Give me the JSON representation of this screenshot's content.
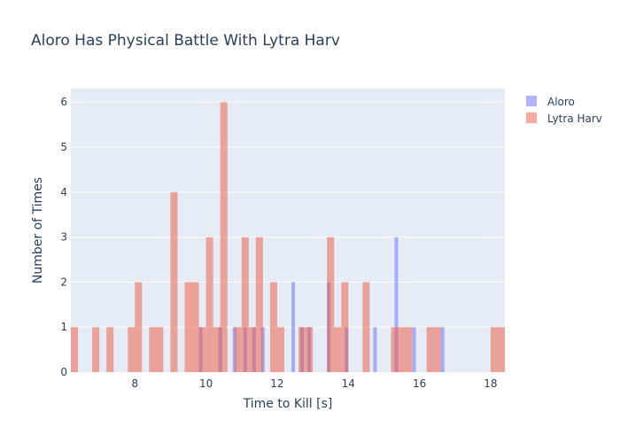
{
  "chart_data": {
    "type": "bar",
    "title": "Aloro Has Physical Battle With Lytra Harv",
    "xlabel": "Time to Kill [s]",
    "ylabel": "Number of Times",
    "xlim": [
      6.2,
      18.4
    ],
    "ylim": [
      0,
      6.3
    ],
    "xticks": [
      8,
      10,
      12,
      14,
      16,
      18
    ],
    "yticks": [
      0,
      1,
      2,
      3,
      4,
      5,
      6
    ],
    "grid": true,
    "legend_position": "top-right",
    "plot_background": "#e5ecf6",
    "series": [
      {
        "name": "Aloro",
        "color": "#636efa",
        "opacity": 0.5,
        "bins": [
          {
            "start": 9.8,
            "end": 9.9,
            "count": 1
          },
          {
            "start": 10.35,
            "end": 10.45,
            "count": 1
          },
          {
            "start": 10.75,
            "end": 10.85,
            "count": 1
          },
          {
            "start": 11.05,
            "end": 11.15,
            "count": 1
          },
          {
            "start": 11.3,
            "end": 11.4,
            "count": 1
          },
          {
            "start": 11.55,
            "end": 11.65,
            "count": 1
          },
          {
            "start": 12.4,
            "end": 12.5,
            "count": 2
          },
          {
            "start": 12.65,
            "end": 12.75,
            "count": 1
          },
          {
            "start": 12.85,
            "end": 12.95,
            "count": 1
          },
          {
            "start": 13.4,
            "end": 13.5,
            "count": 2
          },
          {
            "start": 13.9,
            "end": 14.0,
            "count": 1
          },
          {
            "start": 14.7,
            "end": 14.8,
            "count": 1
          },
          {
            "start": 15.3,
            "end": 15.4,
            "count": 3
          },
          {
            "start": 15.8,
            "end": 15.9,
            "count": 1
          },
          {
            "start": 16.6,
            "end": 16.7,
            "count": 1
          }
        ]
      },
      {
        "name": "Lytra Harv",
        "color": "#ef553b",
        "opacity": 0.5,
        "bins": [
          {
            "start": 6.2,
            "end": 6.4,
            "count": 1
          },
          {
            "start": 6.8,
            "end": 7.0,
            "count": 1
          },
          {
            "start": 7.2,
            "end": 7.4,
            "count": 1
          },
          {
            "start": 7.8,
            "end": 8.0,
            "count": 1
          },
          {
            "start": 8.0,
            "end": 8.2,
            "count": 2
          },
          {
            "start": 8.4,
            "end": 8.6,
            "count": 1
          },
          {
            "start": 8.6,
            "end": 8.8,
            "count": 1
          },
          {
            "start": 9.0,
            "end": 9.2,
            "count": 4
          },
          {
            "start": 9.4,
            "end": 9.6,
            "count": 2
          },
          {
            "start": 9.6,
            "end": 9.8,
            "count": 2
          },
          {
            "start": 9.8,
            "end": 10.0,
            "count": 1
          },
          {
            "start": 10.0,
            "end": 10.2,
            "count": 3
          },
          {
            "start": 10.2,
            "end": 10.4,
            "count": 1
          },
          {
            "start": 10.4,
            "end": 10.6,
            "count": 6
          },
          {
            "start": 10.8,
            "end": 11.0,
            "count": 1
          },
          {
            "start": 11.0,
            "end": 11.2,
            "count": 3
          },
          {
            "start": 11.2,
            "end": 11.4,
            "count": 1
          },
          {
            "start": 11.4,
            "end": 11.6,
            "count": 3
          },
          {
            "start": 11.8,
            "end": 12.0,
            "count": 2
          },
          {
            "start": 12.0,
            "end": 12.2,
            "count": 1
          },
          {
            "start": 12.6,
            "end": 12.8,
            "count": 1
          },
          {
            "start": 12.8,
            "end": 13.0,
            "count": 1
          },
          {
            "start": 13.4,
            "end": 13.6,
            "count": 3
          },
          {
            "start": 13.6,
            "end": 13.8,
            "count": 1
          },
          {
            "start": 13.8,
            "end": 14.0,
            "count": 2
          },
          {
            "start": 14.4,
            "end": 14.6,
            "count": 2
          },
          {
            "start": 15.2,
            "end": 15.4,
            "count": 1
          },
          {
            "start": 15.4,
            "end": 15.6,
            "count": 1
          },
          {
            "start": 15.6,
            "end": 15.8,
            "count": 1
          },
          {
            "start": 16.2,
            "end": 16.4,
            "count": 1
          },
          {
            "start": 16.4,
            "end": 16.6,
            "count": 1
          },
          {
            "start": 18.0,
            "end": 18.2,
            "count": 1
          },
          {
            "start": 18.2,
            "end": 18.4,
            "count": 1
          }
        ]
      }
    ]
  }
}
